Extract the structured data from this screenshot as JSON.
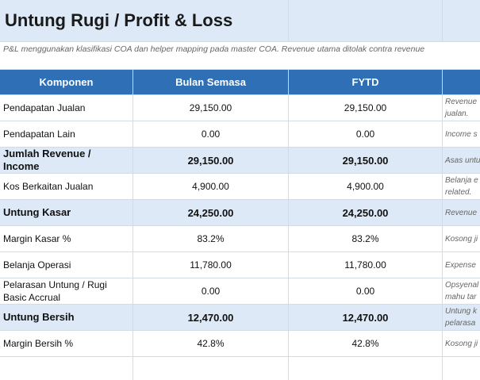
{
  "title": "Untung Rugi / Profit & Loss",
  "subtitle": "P&L menggunakan klasifikasi COA dan helper mapping pada master COA. Revenue utama ditolak contra revenue",
  "table": {
    "header": [
      "Komponen",
      "Bulan Semasa",
      "FYTD"
    ],
    "rows": [
      [
        "Pendapatan Jualan",
        "29,150.00",
        "29,150.00",
        "Revenue\njualan."
      ],
      [
        "Pendapatan Lain",
        "0.00",
        "0.00",
        "Income s"
      ],
      [
        "Jumlah Revenue / Income",
        "29,150.00",
        "29,150.00",
        "Asas untu"
      ],
      [
        "Kos Berkaitan Jualan",
        "4,900.00",
        "4,900.00",
        "Belanja e\nrelated."
      ],
      [
        "Untung Kasar",
        "24,250.00",
        "24,250.00",
        "Revenue"
      ],
      [
        "Margin Kasar %",
        "83.2%",
        "83.2%",
        "Kosong ji"
      ],
      [
        "Belanja Operasi",
        "11,780.00",
        "11,780.00",
        "Expense"
      ],
      [
        "Pelarasan Untung / Rugi Basic Accrual",
        "0.00",
        "0.00",
        "Opsyenal\nmahu tar"
      ],
      [
        "Untung Bersih",
        "12,470.00",
        "12,470.00",
        "Untung k\npelarasa"
      ],
      [
        "Margin Bersih %",
        "42.8%",
        "42.8%",
        "Kosong ji"
      ]
    ]
  }
}
